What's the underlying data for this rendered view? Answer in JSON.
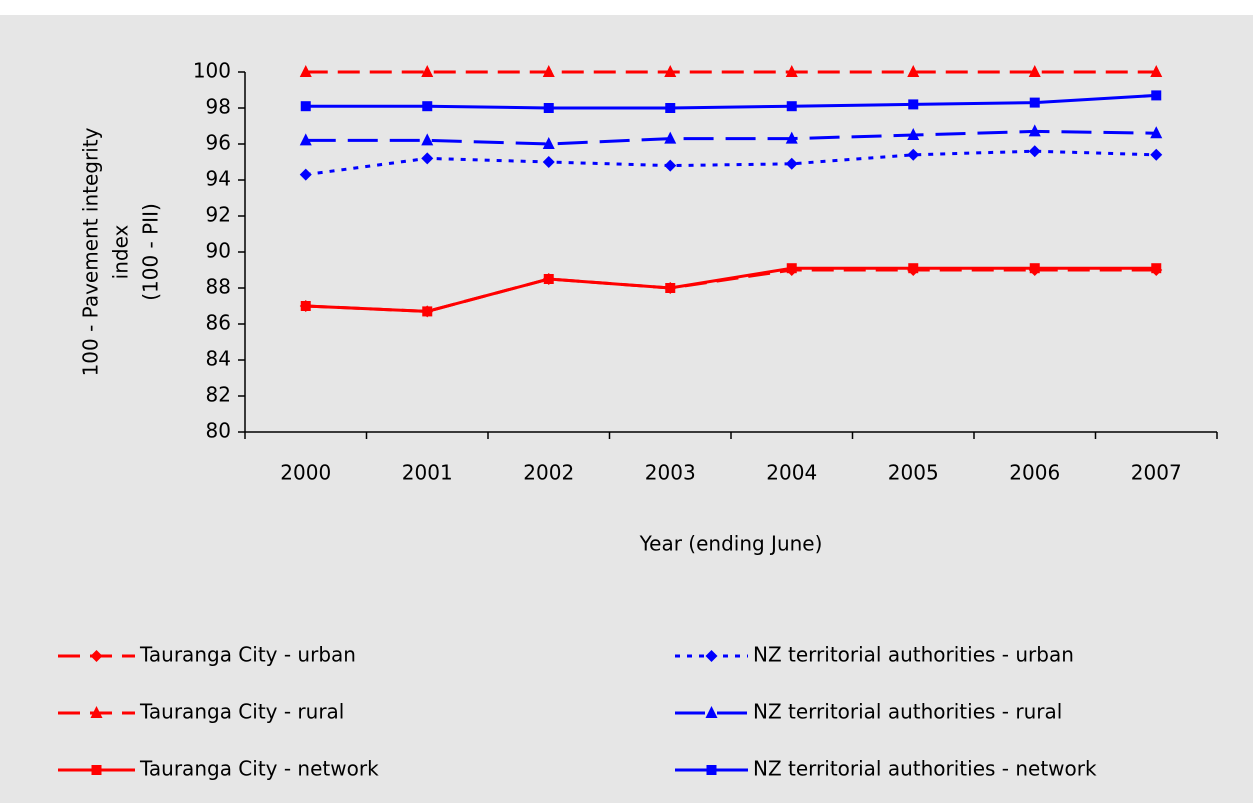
{
  "chart_data": {
    "type": "line",
    "ylabel": [
      "100 - Pavement integrity",
      "index",
      "(100 - PII)"
    ],
    "xlabel": "Year (ending June)",
    "categories": [
      "2000",
      "2001",
      "2002",
      "2003",
      "2004",
      "2005",
      "2006",
      "2007"
    ],
    "ylim": [
      80,
      100
    ],
    "yticks": [
      80,
      82,
      84,
      86,
      88,
      90,
      92,
      94,
      96,
      98,
      100
    ],
    "grid": false,
    "legend": "bottom",
    "series": [
      {
        "name": "Tauranga City - urban",
        "color": "#ff0000",
        "dash": "dashed",
        "marker": "diamond",
        "values": [
          87,
          86.7,
          88.5,
          88,
          89,
          89,
          89,
          89
        ]
      },
      {
        "name": "NZ territorial authorities - urban",
        "color": "#0000ff",
        "dash": "dotted",
        "marker": "diamond",
        "values": [
          94.3,
          95.2,
          95,
          94.8,
          94.9,
          95.4,
          95.6,
          95.4
        ]
      },
      {
        "name": "Tauranga City - rural",
        "color": "#ff0000",
        "dash": "dashed",
        "marker": "triangle",
        "values": [
          100,
          100,
          100,
          100,
          100,
          100,
          100,
          100
        ]
      },
      {
        "name": "NZ territorial authorities - rural",
        "color": "#0000ff",
        "dash": "long-dash",
        "marker": "triangle",
        "values": [
          96.2,
          96.2,
          96,
          96.3,
          96.3,
          96.5,
          96.7,
          96.6
        ]
      },
      {
        "name": "Tauranga City - network",
        "color": "#ff0000",
        "dash": "solid",
        "marker": "square",
        "values": [
          87,
          86.7,
          88.5,
          88,
          89.1,
          89.1,
          89.1,
          89.1
        ]
      },
      {
        "name": "NZ territorial authorities - network",
        "color": "#0000ff",
        "dash": "solid",
        "marker": "square",
        "values": [
          98.1,
          98.1,
          98,
          98,
          98.1,
          98.2,
          98.3,
          98.7
        ]
      }
    ]
  }
}
